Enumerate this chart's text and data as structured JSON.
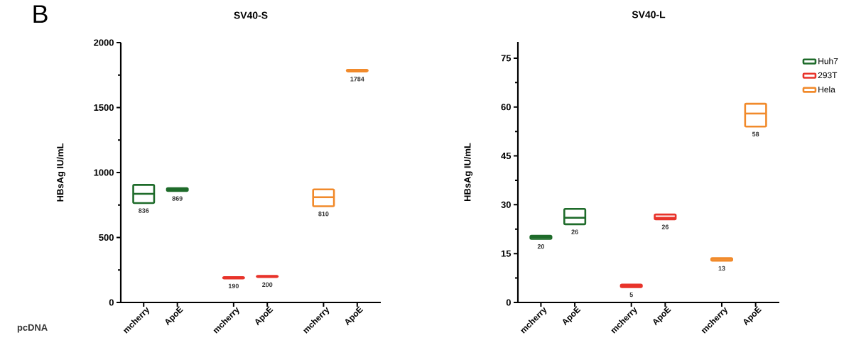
{
  "chart_data": [
    {
      "type": "box",
      "title": "SV40-S",
      "ylabel": "HBsAg IU/mL",
      "xlabel": "pcDNA",
      "annotations": [
        "B"
      ],
      "categories": [
        "mcherry",
        "ApoE",
        "mcherry",
        "ApoE",
        "mcherry",
        "ApoE"
      ],
      "series": [
        {
          "color": "#1e6b2a",
          "boxes": [
            {
              "low": 765,
              "q1": 765,
              "median": 836,
              "q3": 905,
              "high": 905
            },
            {
              "low": 858,
              "q1": 858,
              "median": 869,
              "q3": 880,
              "high": 880
            },
            null,
            null,
            null,
            null
          ],
          "value_labels": [
            "836",
            "869",
            null,
            null,
            null,
            null
          ]
        },
        {
          "color": "#e8332a",
          "boxes": [
            null,
            null,
            {
              "low": 185,
              "q1": 185,
              "median": 190,
              "q3": 195,
              "high": 195
            },
            {
              "low": 195,
              "q1": 195,
              "median": 200,
              "q3": 205,
              "high": 205
            },
            null,
            null
          ],
          "value_labels": [
            null,
            null,
            "190",
            "200",
            null,
            null
          ]
        },
        {
          "color": "#f18a2b",
          "boxes": [
            null,
            null,
            null,
            null,
            {
              "low": 740,
              "q1": 740,
              "median": 810,
              "q3": 870,
              "high": 870
            },
            {
              "low": 1778,
              "q1": 1778,
              "median": 1784,
              "q3": 1790,
              "high": 1790
            }
          ],
          "value_labels": [
            null,
            null,
            null,
            null,
            "810",
            "1784"
          ]
        }
      ],
      "ylim": [
        0,
        2000
      ],
      "yticks": [
        0,
        {
          "value": 250,
          "label": null
        },
        500,
        {
          "value": 750,
          "label": null
        },
        1000,
        {
          "value": 1250,
          "label": null
        },
        1500,
        {
          "value": 1750,
          "label": null
        },
        2000
      ]
    },
    {
      "type": "box",
      "title": "SV40-L",
      "ylabel": "HBsAg IU/mL",
      "categories": [
        "mcherry",
        "ApoE",
        "mcherry",
        "ApoE",
        "mcherry",
        "ApoE"
      ],
      "series": [
        {
          "name": "Huh7",
          "color": "#1e6b2a",
          "boxes": [
            {
              "low": 19.5,
              "q1": 19.5,
              "median": 20,
              "q3": 20.5,
              "high": 20.5
            },
            {
              "low": 24,
              "q1": 24,
              "median": 26,
              "q3": 28.7,
              "high": 28.7
            },
            null,
            null,
            null,
            null
          ],
          "value_labels": [
            "20",
            "26",
            null,
            null,
            null,
            null
          ]
        },
        {
          "name": "293T",
          "color": "#e8332a",
          "boxes": [
            null,
            null,
            {
              "low": 4.7,
              "q1": 4.7,
              "median": 5,
              "q3": 5.5,
              "high": 5.5
            },
            {
              "low": 25.5,
              "q1": 25.5,
              "median": 26,
              "q3": 27,
              "high": 27
            },
            null,
            null
          ],
          "value_labels": [
            null,
            null,
            "5",
            "26",
            null,
            null
          ]
        },
        {
          "name": "Hela",
          "color": "#f18a2b",
          "boxes": [
            null,
            null,
            null,
            null,
            {
              "low": 12.8,
              "q1": 12.8,
              "median": 13,
              "q3": 13.6,
              "high": 13.6
            },
            {
              "low": 54,
              "q1": 54,
              "median": 58,
              "q3": 61,
              "high": 61
            }
          ],
          "value_labels": [
            null,
            null,
            null,
            null,
            "13",
            "58"
          ]
        }
      ],
      "ylim": [
        0,
        80
      ],
      "yticks": [
        0,
        {
          "value": 7.5,
          "label": null
        },
        15,
        {
          "value": 22.5,
          "label": null
        },
        30,
        {
          "value": 37.5,
          "label": null
        },
        45,
        {
          "value": 52.5,
          "label": null
        },
        60,
        {
          "value": 67.5,
          "label": null
        },
        75
      ],
      "legend": "top right"
    }
  ]
}
